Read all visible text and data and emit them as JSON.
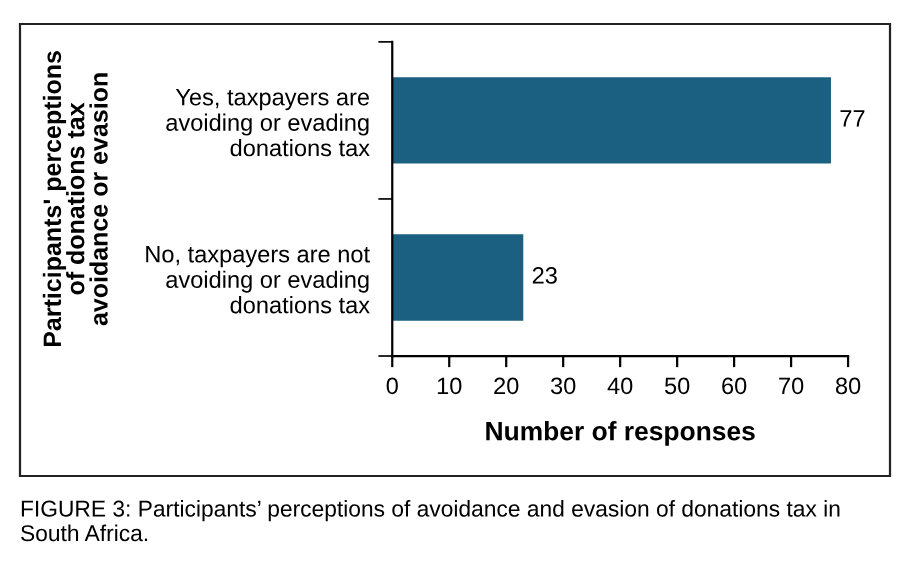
{
  "chart_data": {
    "type": "bar",
    "orientation": "horizontal",
    "categories": [
      "Yes, taxpayers are\navoiding or evading\ndonations tax",
      "No, taxpayers are not\navoiding or evading\ndonations tax"
    ],
    "values": [
      77,
      23
    ],
    "color": "#1b6080",
    "data_labels": true,
    "xlim": [
      0,
      80
    ],
    "xticks": [
      0,
      10,
      20,
      30,
      40,
      50,
      60,
      70,
      80
    ],
    "xlabel": "Number of responses",
    "ylabel": "Participants' perceptions\nof donations tax\navoidance or evasion",
    "grid": false,
    "annotations": [
      "FIGURE 3: Participants’ perceptions of avoidance and evasion of donations tax in South Africa."
    ]
  }
}
